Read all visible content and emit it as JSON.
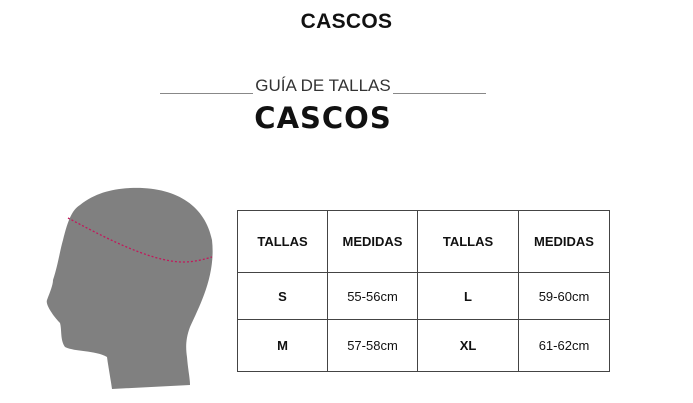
{
  "header": {
    "title": "CASCOS"
  },
  "guide": {
    "subtitle": "GUÍA DE TALLAS",
    "title": "CASCOS"
  },
  "illustration": {
    "name": "head-measurement-icon",
    "head_color": "#808080",
    "measure_color": "#c2185b"
  },
  "table": {
    "headers": [
      "TALLAS",
      "MEDIDAS",
      "TALLAS",
      "MEDIDAS"
    ],
    "rows": [
      [
        "S",
        "55-56cm",
        "L",
        "59-60cm"
      ],
      [
        "M",
        "57-58cm",
        "XL",
        "61-62cm"
      ]
    ]
  }
}
